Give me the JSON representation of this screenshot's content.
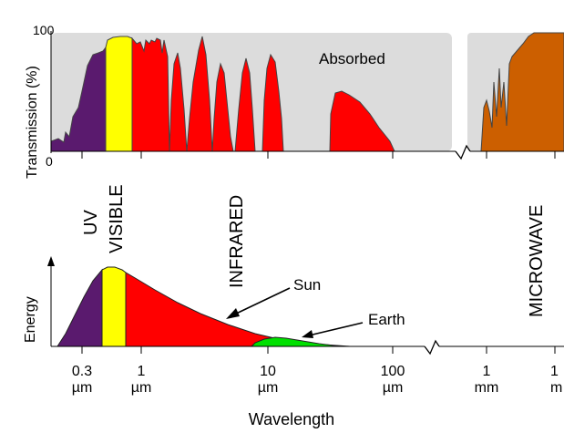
{
  "top_panel": {
    "y_axis_label": "Transmission (%)",
    "y_tick_top": "100",
    "y_tick_bottom": "0",
    "absorbed_label": "Absorbed"
  },
  "band_labels": {
    "uv": "UV",
    "visible": "VISIBLE",
    "infrared": "INFRARED",
    "microwave": "MICROWAVE"
  },
  "bottom_panel": {
    "y_axis_label": "Energy",
    "sun_label": "Sun",
    "earth_label": "Earth"
  },
  "x_axis": {
    "title": "Wavelength",
    "ticks": [
      {
        "value": "0.3",
        "unit": "µm"
      },
      {
        "value": "1",
        "unit": "µm"
      },
      {
        "value": "10",
        "unit": "µm"
      },
      {
        "value": "100",
        "unit": "µm"
      },
      {
        "value": "1",
        "unit": "mm"
      },
      {
        "value": "1",
        "unit": "m"
      }
    ]
  },
  "colors": {
    "uv": "#5a1a6e",
    "visible": "#ffff00",
    "infrared": "#ff0000",
    "microwave": "#cc5f00",
    "earth": "#00e000",
    "absorbed": "#dcdcdc"
  }
}
